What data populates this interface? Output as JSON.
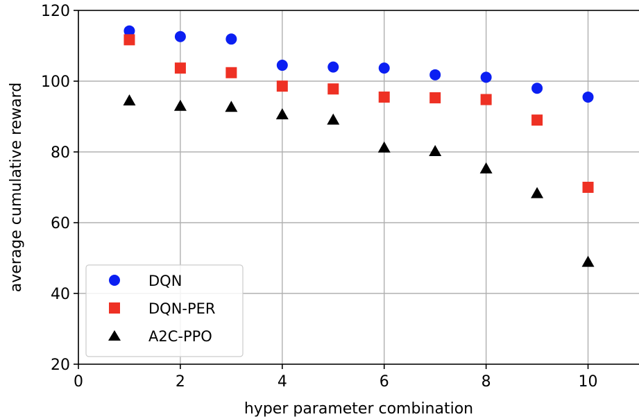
{
  "chart_data": {
    "type": "scatter",
    "title": "",
    "xlabel": "hyper parameter combination",
    "ylabel": "average cumulative reward",
    "xlim": [
      0,
      11
    ],
    "ylim": [
      20,
      120
    ],
    "xticks": [
      0,
      2,
      4,
      6,
      8,
      10
    ],
    "yticks": [
      20,
      40,
      60,
      80,
      100,
      120
    ],
    "grid": true,
    "legend_position": "lower-left",
    "x": [
      1,
      2,
      3,
      4,
      5,
      6,
      7,
      8,
      9,
      10
    ],
    "series": [
      {
        "name": "DQN",
        "marker": "circle",
        "color": "#0b1ff2",
        "values": [
          114.2,
          112.6,
          111.9,
          104.5,
          104.0,
          103.7,
          101.8,
          101.1,
          98.0,
          95.5
        ]
      },
      {
        "name": "DQN-PER",
        "marker": "square",
        "color": "#ee3124",
        "values": [
          111.7,
          103.7,
          102.4,
          98.6,
          97.8,
          95.5,
          95.3,
          94.8,
          89.0,
          70.0
        ]
      },
      {
        "name": "A2C-PPO",
        "marker": "triangle",
        "color": "#000000",
        "values": [
          94.5,
          93.0,
          92.7,
          90.6,
          89.1,
          81.2,
          80.2,
          75.3,
          68.3,
          48.9
        ]
      }
    ]
  }
}
